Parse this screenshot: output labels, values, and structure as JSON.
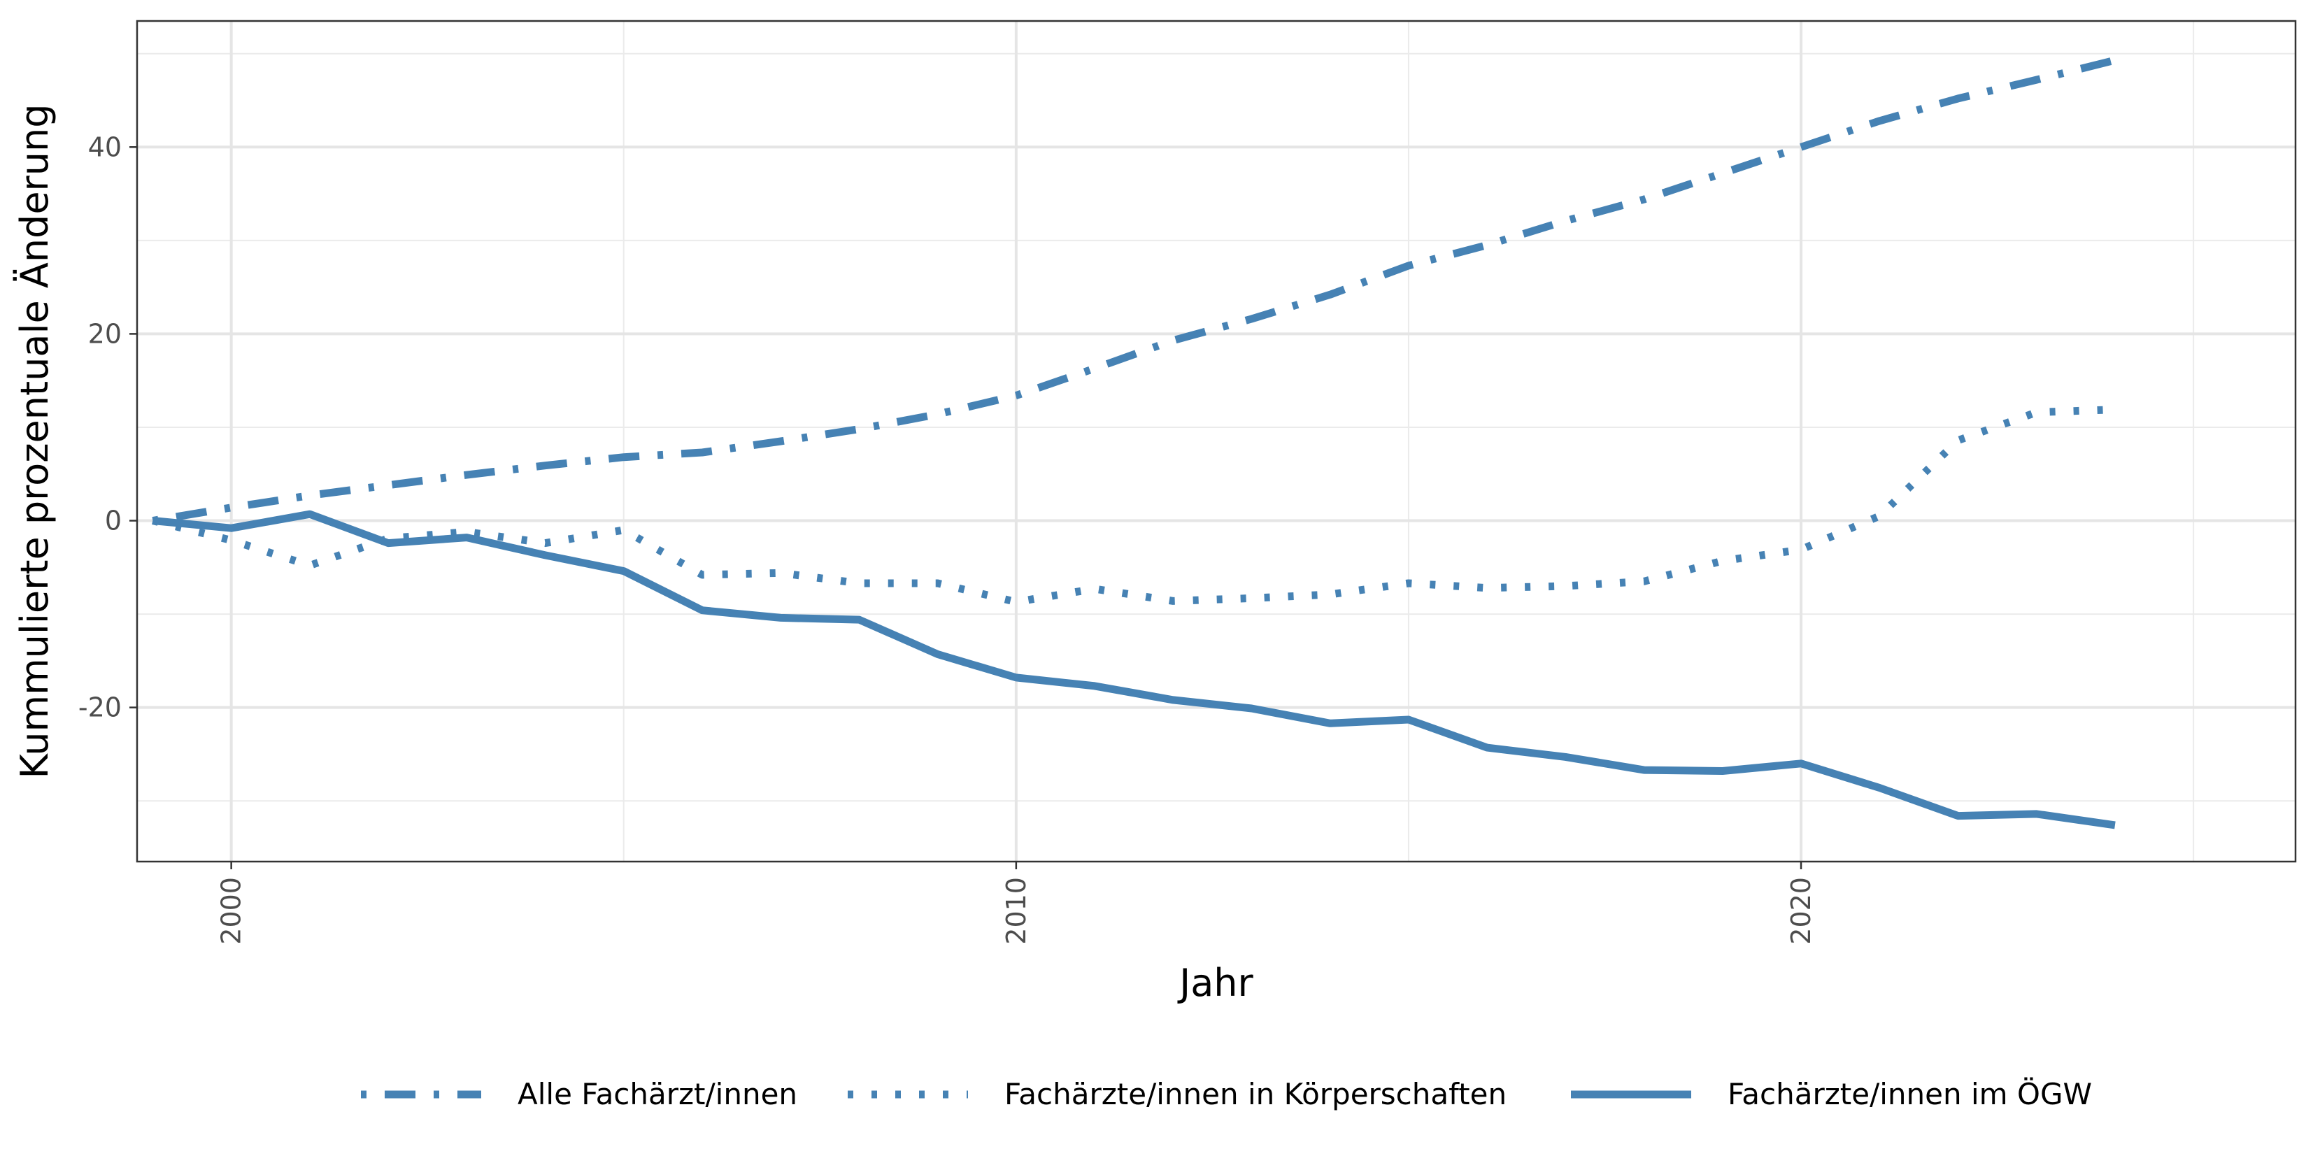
{
  "chart_data": {
    "type": "line",
    "title": "",
    "xlabel": "Jahr",
    "ylabel": "Kummulierte prozentuale Änderung",
    "xlim": [
      1998.8,
      2026.3
    ],
    "ylim": [
      -36.5,
      53.5
    ],
    "x_ticks": [
      2000,
      2010,
      2020
    ],
    "x_tick_labels": [
      "2000",
      "2010",
      "2020"
    ],
    "y_ticks": [
      -20,
      0,
      20,
      40
    ],
    "y_tick_labels": [
      "-20",
      "0",
      "20",
      "40"
    ],
    "grid": true,
    "legend_position": "bottom",
    "series": [
      {
        "name": "Alle Fachärzt/innen",
        "style": "dot-dash",
        "color": "#4682b4",
        "x": [
          1999,
          2000,
          2001,
          2002,
          2003,
          2004,
          2005,
          2006,
          2007,
          2008,
          2009,
          2010,
          2011,
          2012,
          2013,
          2014,
          2015,
          2016,
          2017,
          2018,
          2019,
          2020,
          2021,
          2022,
          2023,
          2024
        ],
        "values": [
          0,
          1.4,
          2.7,
          3.8,
          4.9,
          5.9,
          6.8,
          7.3,
          8.5,
          9.8,
          11.4,
          13.4,
          16.3,
          19.3,
          21.6,
          24.2,
          27.3,
          29.5,
          32.1,
          34.4,
          37.2,
          40.0,
          42.8,
          45.2,
          47.2,
          49.3
        ]
      },
      {
        "name": "Fachärzte/innen in Körperschaften",
        "style": "dotted",
        "color": "#4682b4",
        "x": [
          1999,
          2000,
          2001,
          2002,
          2003,
          2004,
          2005,
          2006,
          2007,
          2008,
          2009,
          2010,
          2011,
          2012,
          2013,
          2014,
          2015,
          2016,
          2017,
          2018,
          2019,
          2020,
          2021,
          2022,
          2023,
          2024
        ],
        "values": [
          0,
          -2.1,
          -4.8,
          -1.9,
          -1.2,
          -2.4,
          -1.0,
          -5.8,
          -5.6,
          -6.7,
          -6.7,
          -8.7,
          -7.3,
          -8.6,
          -8.3,
          -7.9,
          -6.7,
          -7.2,
          -7.0,
          -6.5,
          -4.3,
          -3.1,
          0.5,
          8.6,
          11.6,
          11.9
        ]
      },
      {
        "name": "Fachärzte/innen im ÖGW",
        "style": "solid",
        "color": "#4682b4",
        "x": [
          1999,
          2000,
          2001,
          2002,
          2003,
          2004,
          2005,
          2006,
          2007,
          2008,
          2009,
          2010,
          2011,
          2012,
          2013,
          2014,
          2015,
          2016,
          2017,
          2018,
          2019,
          2020,
          2021,
          2022,
          2023,
          2024
        ],
        "values": [
          0,
          -0.8,
          0.7,
          -2.4,
          -1.8,
          -3.7,
          -5.4,
          -9.6,
          -10.4,
          -10.6,
          -14.3,
          -16.8,
          -17.7,
          -19.2,
          -20.1,
          -21.7,
          -21.3,
          -24.3,
          -25.3,
          -26.7,
          -26.8,
          -26.0,
          -28.6,
          -31.6,
          -31.4,
          -32.6
        ]
      }
    ]
  }
}
